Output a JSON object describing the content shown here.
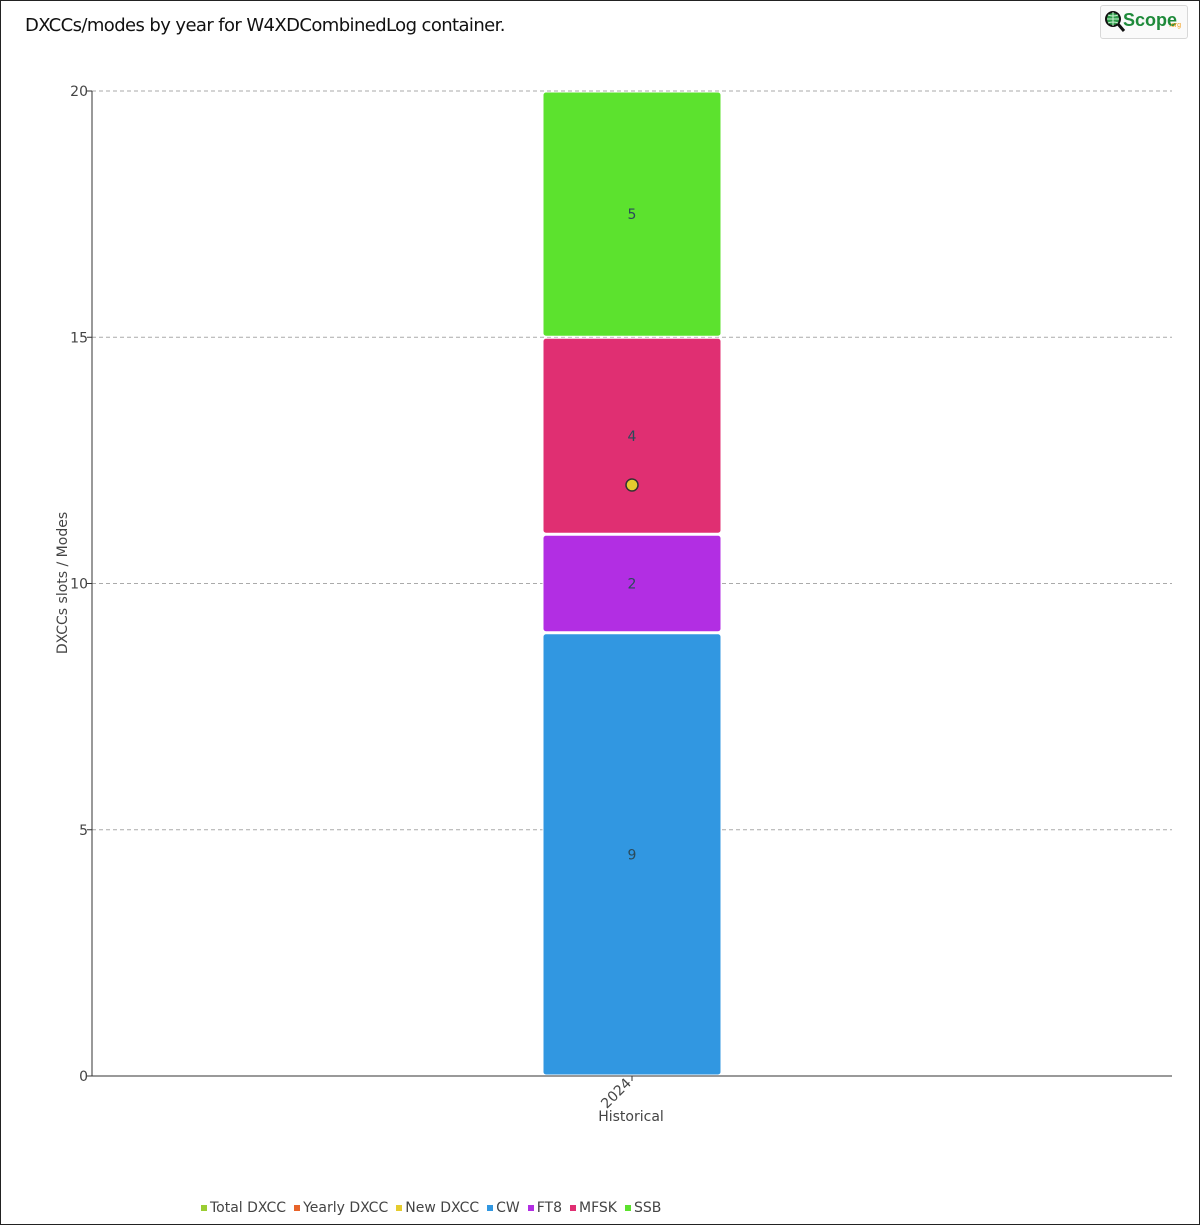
{
  "title": "DXCCs/modes by year for W4XDCombinedLog container.",
  "logo": {
    "text": "Scope",
    "suffix": ".org",
    "icon": "magnifier-globe-icon"
  },
  "chart_data": {
    "type": "bar",
    "stacked": true,
    "categories": [
      "2024"
    ],
    "xlabel": "Historical",
    "ylabel": "DXCCs slots / Modes",
    "ylim": [
      0,
      20
    ],
    "yticks": [
      0,
      5,
      10,
      15,
      20
    ],
    "grid": true,
    "legend_position": "bottom",
    "legend": [
      {
        "name": "Total DXCC",
        "color": "#9acd32"
      },
      {
        "name": "Yearly DXCC",
        "color": "#e8642a"
      },
      {
        "name": "New DXCC",
        "color": "#e5cc2e"
      },
      {
        "name": "CW",
        "color": "#3197e1"
      },
      {
        "name": "FT8",
        "color": "#b22ee3"
      },
      {
        "name": "MFSK",
        "color": "#e02f72"
      },
      {
        "name": "SSB",
        "color": "#5ce22e"
      }
    ],
    "series": [
      {
        "name": "CW",
        "values": [
          9
        ],
        "color": "#3197e1"
      },
      {
        "name": "FT8",
        "values": [
          2
        ],
        "color": "#b22ee3"
      },
      {
        "name": "MFSK",
        "values": [
          4
        ],
        "color": "#e02f72"
      },
      {
        "name": "SSB",
        "values": [
          5
        ],
        "color": "#5ce22e"
      }
    ],
    "points": [
      {
        "name": "New DXCC",
        "x": "2024",
        "y": 12,
        "color": "#e5cc2e"
      }
    ]
  }
}
